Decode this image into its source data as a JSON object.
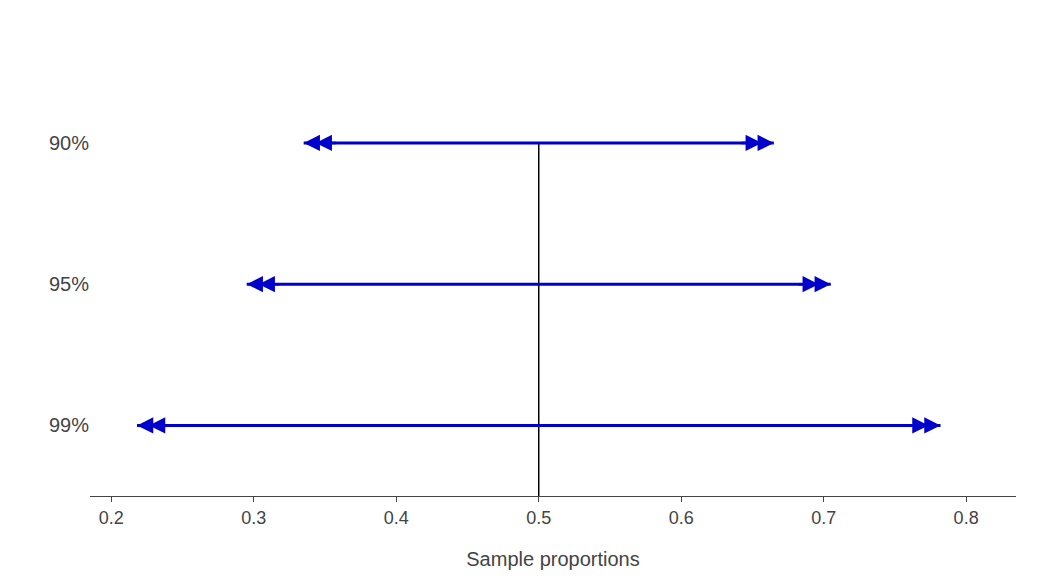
{
  "chart_data": {
    "type": "interval",
    "categories": [
      "90%",
      "95%",
      "99%"
    ],
    "lows": [
      0.335,
      0.295,
      0.218
    ],
    "highs": [
      0.665,
      0.705,
      0.782
    ],
    "center": {
      "value": 0.5,
      "color": "#000000"
    },
    "xlabel": "Sample proportions",
    "xlim": [
      0.185,
      0.835
    ],
    "xticks": [
      0.2,
      0.3,
      0.4,
      0.5,
      0.6,
      0.7,
      0.8
    ],
    "color": "#0000CC",
    "grid": false
  }
}
